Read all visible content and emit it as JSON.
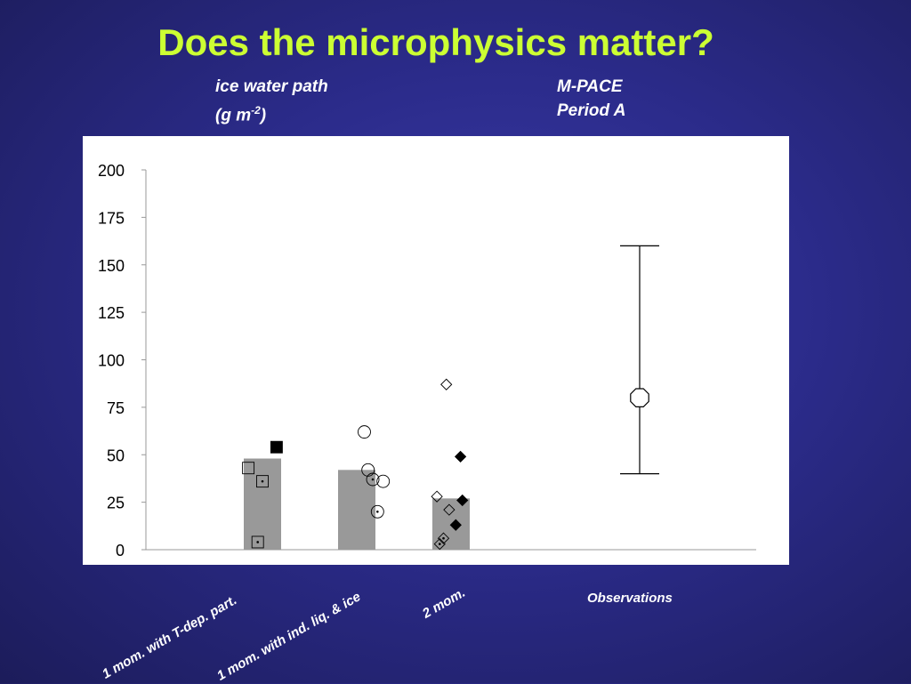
{
  "slide": {
    "title": "Does the microphysics matter?",
    "ylabel_line1": "ice water path",
    "ylabel_line2_prefix": "(g m",
    "ylabel_line2_sup": "-2",
    "ylabel_line2_suffix": ")",
    "case_line1": "M-PACE",
    "case_line2": "Period A",
    "accent_color": "#ccff33",
    "background_color": "#2b2b8a"
  },
  "chart_data": {
    "type": "bar",
    "categories": [
      "1 mom. with T-dep. part.",
      "1 mom. with ind. liq. & ice",
      "2 mom.",
      "Observations"
    ],
    "ylabel": "ice water path (g m-2)",
    "ylim": [
      0,
      200
    ],
    "yticks": [
      0,
      25,
      50,
      75,
      100,
      125,
      150,
      175,
      200
    ],
    "grid": false,
    "bar_means": [
      48,
      42,
      27,
      null
    ],
    "bar_color": "#999999",
    "points": [
      {
        "category": 0,
        "offset": -0.15,
        "value": 43,
        "marker": "square-open"
      },
      {
        "category": 0,
        "offset": 0.0,
        "value": 36,
        "marker": "square-open-dot"
      },
      {
        "category": 0,
        "offset": -0.05,
        "value": 4,
        "marker": "square-open-dot"
      },
      {
        "category": 0,
        "offset": 0.15,
        "value": 54,
        "marker": "square-filled"
      },
      {
        "category": 1,
        "offset": 0.08,
        "value": 62,
        "marker": "circle-open"
      },
      {
        "category": 1,
        "offset": 0.12,
        "value": 42,
        "marker": "circle-open"
      },
      {
        "category": 1,
        "offset": 0.17,
        "value": 37,
        "marker": "circle-open-dot"
      },
      {
        "category": 1,
        "offset": 0.28,
        "value": 36,
        "marker": "circle-open"
      },
      {
        "category": 1,
        "offset": 0.22,
        "value": 20,
        "marker": "circle-open-dot"
      },
      {
        "category": 2,
        "offset": -0.05,
        "value": 87,
        "marker": "diamond-open"
      },
      {
        "category": 2,
        "offset": 0.1,
        "value": 49,
        "marker": "diamond-filled"
      },
      {
        "category": 2,
        "offset": -0.15,
        "value": 28,
        "marker": "diamond-open"
      },
      {
        "category": 2,
        "offset": -0.02,
        "value": 21,
        "marker": "diamond-open"
      },
      {
        "category": 2,
        "offset": 0.12,
        "value": 26,
        "marker": "diamond-filled"
      },
      {
        "category": 2,
        "offset": 0.05,
        "value": 13,
        "marker": "diamond-filled"
      },
      {
        "category": 2,
        "offset": -0.08,
        "value": 6,
        "marker": "diamond-open-dot"
      },
      {
        "category": 2,
        "offset": -0.12,
        "value": 3,
        "marker": "diamond-open-dot"
      }
    ],
    "observation": {
      "category": 3,
      "value": 80,
      "low": 40,
      "high": 160,
      "marker": "octagon-open"
    }
  }
}
